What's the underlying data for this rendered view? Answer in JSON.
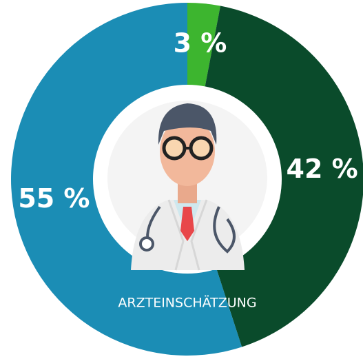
{
  "chart_data": {
    "type": "donut",
    "categories": [
      null,
      null,
      null
    ],
    "values": [
      3,
      42,
      55
    ],
    "value_labels": [
      "3 %",
      "42 %",
      "55 %"
    ],
    "colors": [
      "#3db52f",
      "#0a4b2b",
      "#1b8db5"
    ],
    "center_label": "ARZTEINSCHÄTZUNG"
  }
}
